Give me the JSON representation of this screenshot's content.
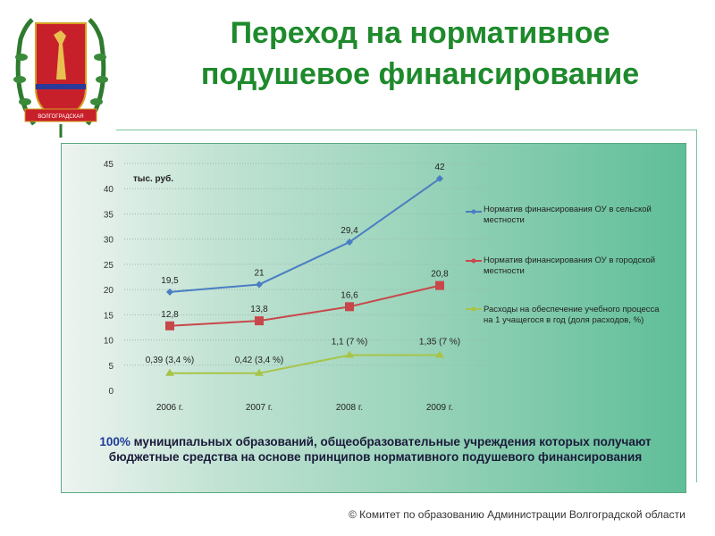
{
  "title": "Переход на нормативное подушевое финансирование",
  "emblem_text": "ВОЛГОГРАДСКАЯ ОБЛАСТЬ",
  "chart_data": {
    "type": "line",
    "unit_label": "тыс. руб.",
    "categories": [
      "2006 г.",
      "2007 г.",
      "2008 г.",
      "2009 г."
    ],
    "ylim": [
      0,
      45
    ],
    "yticks": [
      0,
      5,
      10,
      15,
      20,
      25,
      30,
      35,
      40,
      45
    ],
    "grid": true,
    "legend_position": "right",
    "series": [
      {
        "name": "Норматив финансирования ОУ в сельской местности",
        "color": "#4a7ec2",
        "marker": "diamond",
        "values": [
          19.5,
          21,
          29.4,
          42
        ],
        "labels": [
          "19,5",
          "21",
          "29,4",
          "42"
        ]
      },
      {
        "name": "Норматив финансирования ОУ в городской местности",
        "color": "#c8474a",
        "marker": "square",
        "values": [
          12.8,
          13.8,
          16.6,
          20.8
        ],
        "labels": [
          "12,8",
          "13,8",
          "16,6",
          "20,8"
        ]
      },
      {
        "name": "Расходы на обеспечение учебного процесса на 1 учащегося в год (доля расходов, %)",
        "color": "#a8c448",
        "marker": "triangle",
        "values": [
          3.4,
          3.4,
          7,
          7
        ],
        "labels": [
          "0,39 (3,4 %)",
          "0,42 (3,4 %)",
          "1,1 (7 %)",
          "1,35 (7 %)"
        ]
      }
    ]
  },
  "caption": {
    "highlight": "100%",
    "text": " муниципальных образований, общеобразовательные учреждения которых получают бюджетные средства на основе принципов нормативного подушевого финансирования"
  },
  "footer": "© Комитет по образованию Администрации Волгоградской области"
}
